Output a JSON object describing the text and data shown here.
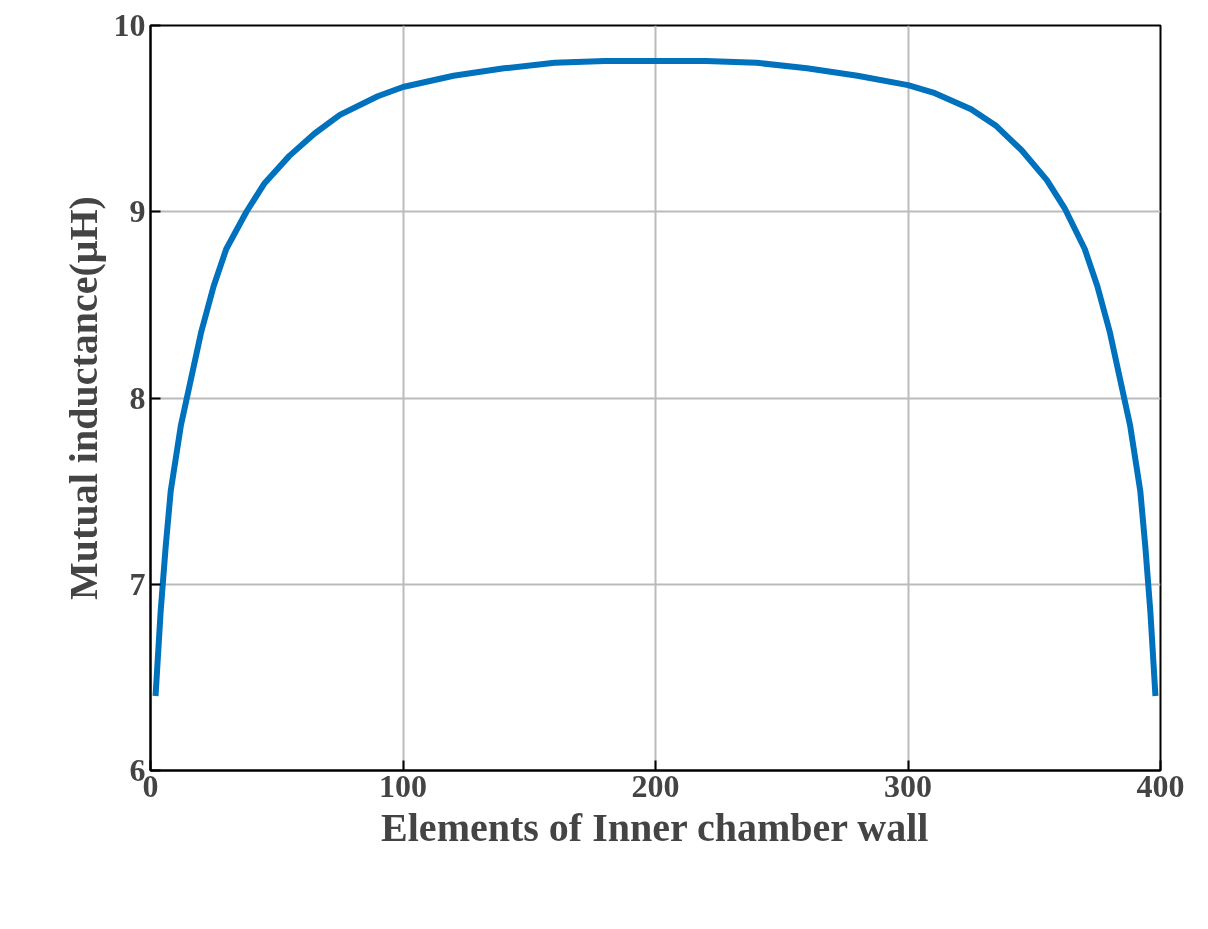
{
  "chart_data": {
    "type": "line",
    "xlabel": "Elements of Inner chamber wall",
    "ylabel": "Mutual inductance(μH)",
    "xlim": [
      0,
      400
    ],
    "ylim": [
      6,
      10
    ],
    "xticks": [
      0,
      100,
      200,
      300,
      400
    ],
    "yticks": [
      6,
      7,
      8,
      9,
      10
    ],
    "grid": true,
    "line_style": "solid",
    "series": [
      {
        "color": "#0072bd",
        "x": [
          2,
          4,
          6,
          8,
          12,
          16,
          20,
          25,
          30,
          38,
          45,
          55,
          65,
          75,
          90,
          100,
          120,
          140,
          160,
          180,
          200,
          220,
          240,
          260,
          280,
          300,
          310,
          325,
          335,
          345,
          355,
          362,
          370,
          375,
          380,
          384,
          388,
          392,
          394,
          396,
          398
        ],
        "values": [
          6.4,
          6.85,
          7.2,
          7.5,
          7.85,
          8.1,
          8.35,
          8.6,
          8.8,
          9.0,
          9.15,
          9.3,
          9.42,
          9.52,
          9.62,
          9.67,
          9.73,
          9.77,
          9.8,
          9.81,
          9.81,
          9.81,
          9.8,
          9.77,
          9.73,
          9.68,
          9.64,
          9.55,
          9.46,
          9.33,
          9.17,
          9.02,
          8.8,
          8.6,
          8.35,
          8.1,
          7.85,
          7.5,
          7.2,
          6.85,
          6.4
        ]
      }
    ]
  }
}
